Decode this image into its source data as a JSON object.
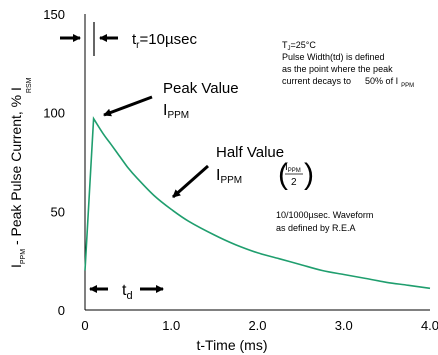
{
  "chart_data": {
    "type": "line",
    "xlabel": "t-Time (ms)",
    "ylabel_main": "I",
    "ylabel_main_sub": "PPM",
    "ylabel_rest": " - Peak Pulse Current, % I",
    "ylabel_rest_sub": "RSM",
    "xlim": [
      0,
      4.0
    ],
    "ylim": [
      0,
      150
    ],
    "x_ticks": [
      "0",
      "1.0",
      "2.0",
      "3.0",
      "4.0"
    ],
    "y_ticks": [
      "0",
      "50",
      "100",
      "150"
    ],
    "x_tick_values": [
      0,
      1,
      2,
      3,
      4
    ],
    "y_tick_values": [
      0,
      50,
      100,
      150
    ],
    "grid": false,
    "line_color": "#1f9e6e",
    "series": [
      {
        "x": [
          0,
          0.1,
          0.2,
          0.3,
          0.4,
          0.5,
          0.6,
          0.8,
          1.0,
          1.2,
          1.5,
          1.75,
          2.0,
          2.25,
          2.5,
          2.75,
          3.0,
          3.25,
          3.5,
          3.75,
          4.0
        ],
        "y": [
          20,
          97,
          90,
          84,
          78,
          72,
          67,
          58,
          51,
          45,
          38,
          33,
          29,
          26,
          23,
          20,
          18,
          16,
          14,
          12.5,
          11
        ]
      }
    ],
    "annotations": {
      "tr_label": "t",
      "tr_label_sub": "r",
      "tr_label_rest": "=10µsec",
      "peak_label_1": "Peak Value",
      "peak_label_2": "I",
      "peak_label_2_sub": "PPM",
      "half_label_1": "Half Value",
      "half_label_2": "I",
      "half_label_2_sub": "PPM",
      "half_frac_num": "I",
      "half_frac_num_sub": "PPM",
      "half_frac_den": "2",
      "td_label": "t",
      "td_label_sub": "d",
      "note_1": "T",
      "note_1_sub": "J",
      "note_1_rest": "=25°C",
      "note_2": "Pulse Width(td) is defined",
      "note_3": "as the point where the peak",
      "note_4a": "current decays to",
      "note_4b": "50% of I",
      "note_4b_sub": "PPM",
      "waveform_1": "10/1000µsec. Waveform",
      "waveform_2": "as defined by R.E.A"
    }
  }
}
